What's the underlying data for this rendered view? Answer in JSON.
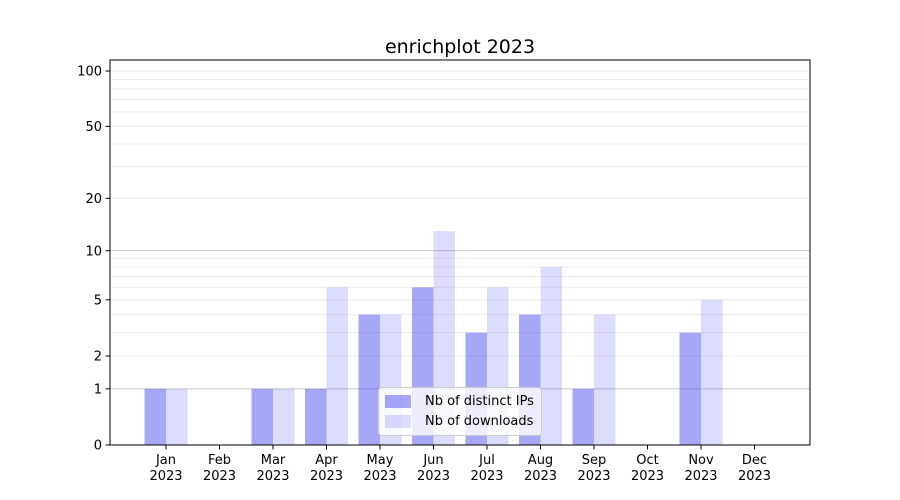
{
  "title": "enrichplot 2023",
  "chart_data": {
    "type": "bar",
    "title": "enrichplot 2023",
    "categories": [
      "Jan",
      "Feb",
      "Mar",
      "Apr",
      "May",
      "Jun",
      "Jul",
      "Aug",
      "Sep",
      "Oct",
      "Nov",
      "Dec"
    ],
    "category_year_label": "2023",
    "series": [
      {
        "name": "Nb of distinct IPs",
        "color": "#4444EE78",
        "values": [
          1,
          0,
          1,
          1,
          4,
          6,
          3,
          4,
          1,
          0,
          3,
          0
        ]
      },
      {
        "name": "Nb of downloads",
        "color": "#4444EE30",
        "values": [
          1,
          0,
          1,
          6,
          4,
          13,
          6,
          8,
          4,
          0,
          5,
          0
        ]
      }
    ],
    "xlabel": "",
    "ylabel": "",
    "y_scale": "log1p",
    "ylim": [
      0,
      115
    ],
    "y_ticks": [
      100,
      50,
      20,
      10,
      5,
      2,
      1,
      0
    ],
    "y_major_gridlines": [
      1,
      10
    ],
    "y_minor_gridlines": [
      2,
      3,
      4,
      5,
      6,
      7,
      8,
      9,
      20,
      30,
      40,
      50,
      60,
      70,
      80,
      90,
      100
    ],
    "grid": true,
    "legend_position": "lower center",
    "colors": {
      "bar_base": "#4444EE",
      "major_gridline": "#c9c9c9",
      "minor_gridline": "#ececec",
      "axis": "#000000"
    }
  }
}
